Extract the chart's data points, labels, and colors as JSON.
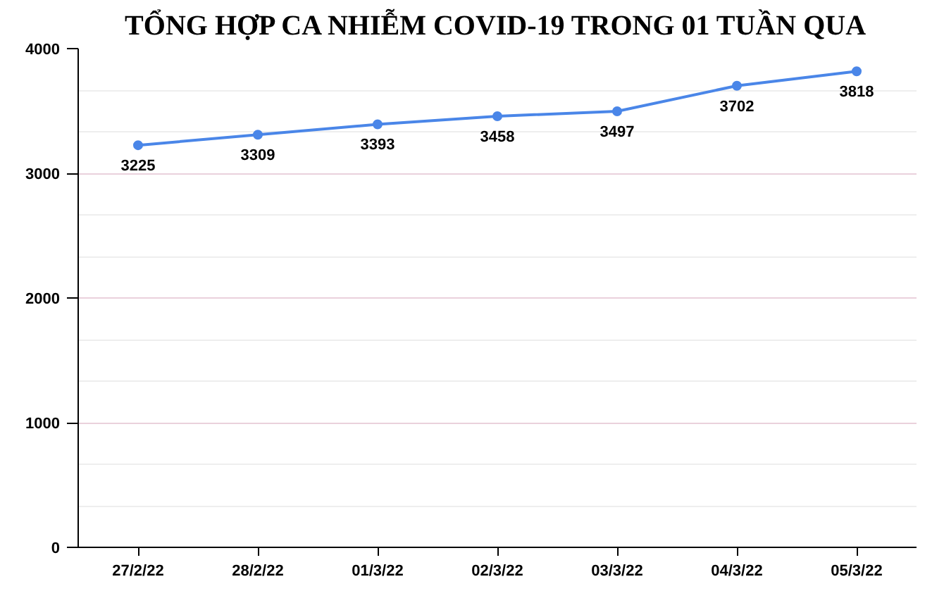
{
  "chart_data": {
    "type": "line",
    "title": "TỔNG HỢP CA NHIỄM COVID-19 TRONG 01 TUẦN QUA",
    "categories": [
      "27/2/22",
      "28/2/22",
      "01/3/22",
      "02/3/22",
      "03/3/22",
      "04/3/22",
      "05/3/22"
    ],
    "series": [
      {
        "color": "#4a86e8",
        "values": [
          3225,
          3309,
          3393,
          3458,
          3497,
          3702,
          3818
        ]
      }
    ],
    "ylim": [
      0,
      4000
    ],
    "yticks": [
      0,
      1000,
      2000,
      3000,
      4000
    ],
    "grid": "y",
    "marker": "circle",
    "line_style": "solid",
    "data_labels": true
  }
}
